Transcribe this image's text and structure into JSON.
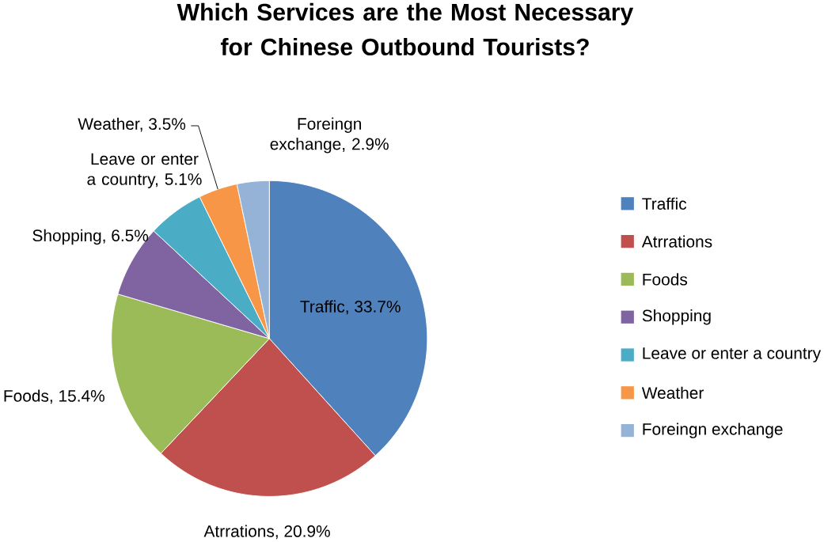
{
  "chart_data": {
    "type": "pie",
    "title": "Which Services are the Most Necessary for Chinese Outbound Tourists?",
    "categories": [
      "Traffic",
      "Atrrations",
      "Foods",
      "Shopping",
      "Leave or enter a country",
      "Weather",
      "Foreingn exchange"
    ],
    "values": [
      33.7,
      20.9,
      15.4,
      6.5,
      5.1,
      3.5,
      2.9
    ],
    "colors": [
      "#4f81bd",
      "#c0504d",
      "#9bbb59",
      "#8064a2",
      "#4bacc6",
      "#f79646",
      "#95b3d7"
    ],
    "value_labels": [
      "Traffic, 33.7%",
      "Atrrations, 20.9%",
      "Foods, 15.4%",
      "Shopping, 6.5%",
      "Leave or enter a country, 5.1%",
      "Weather, 3.5%",
      "Foreingn exchange, 2.9%"
    ],
    "legend": "right"
  }
}
